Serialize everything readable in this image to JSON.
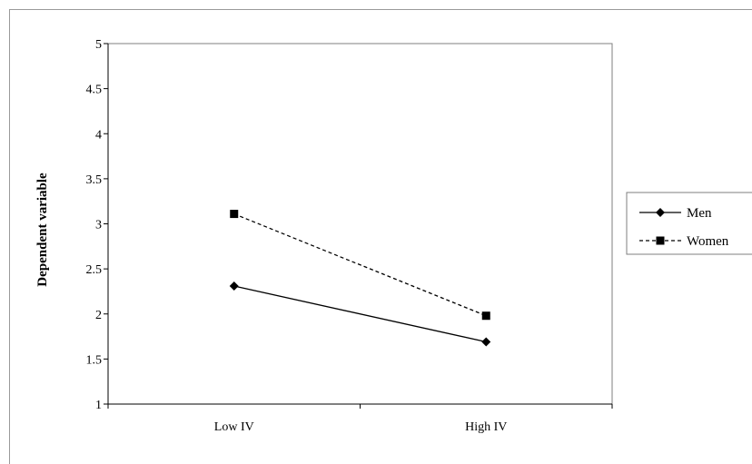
{
  "chart_data": {
    "type": "line",
    "categories": [
      "Low IV",
      "High IV"
    ],
    "series": [
      {
        "name": "Men",
        "values": [
          2.31,
          1.69
        ],
        "line_style": "solid",
        "marker": "diamond",
        "color": "#000000"
      },
      {
        "name": "Women",
        "values": [
          3.11,
          1.98
        ],
        "line_style": "dashed",
        "marker": "square",
        "color": "#000000"
      }
    ],
    "title": "",
    "xlabel": "",
    "ylabel": "Dependent variable",
    "ylim": [
      1,
      5
    ],
    "y_ticks": [
      "1",
      "1.5",
      "2",
      "2.5",
      "3",
      "3.5",
      "4",
      "4.5",
      "5"
    ],
    "grid": false,
    "legend_position": "right"
  }
}
